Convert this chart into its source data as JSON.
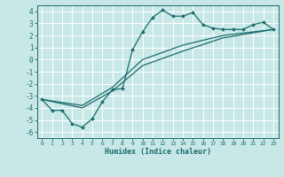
{
  "title": "",
  "xlabel": "Humidex (Indice chaleur)",
  "ylabel": "",
  "bg_color": "#c8e8e8",
  "grid_color": "#ffffff",
  "line_color": "#1a6b6b",
  "xlim": [
    -0.5,
    23.5
  ],
  "ylim": [
    -6.5,
    4.5
  ],
  "xticks": [
    0,
    1,
    2,
    3,
    4,
    5,
    6,
    7,
    8,
    9,
    10,
    11,
    12,
    13,
    14,
    15,
    16,
    17,
    18,
    19,
    20,
    21,
    22,
    23
  ],
  "yticks": [
    -6,
    -5,
    -4,
    -3,
    -2,
    -1,
    0,
    1,
    2,
    3,
    4
  ],
  "line1_x": [
    0,
    1,
    2,
    3,
    4,
    5,
    6,
    7,
    8,
    9,
    10,
    11,
    12,
    13,
    14,
    15,
    16,
    17,
    18,
    19,
    20,
    21,
    22,
    23
  ],
  "line1_y": [
    -3.3,
    -4.2,
    -4.2,
    -5.3,
    -5.6,
    -4.9,
    -3.5,
    -2.5,
    -2.4,
    0.8,
    2.3,
    3.5,
    4.1,
    3.6,
    3.6,
    3.9,
    2.9,
    2.6,
    2.5,
    2.5,
    2.5,
    2.9,
    3.1,
    2.5
  ],
  "line2_x": [
    0,
    23
  ],
  "line2_y": [
    -3.3,
    2.5
  ],
  "line3_x": [
    0,
    23
  ],
  "line3_y": [
    -3.3,
    2.5
  ],
  "line2_full_x": [
    0,
    4,
    7,
    10,
    14,
    18,
    23
  ],
  "line2_full_y": [
    -3.3,
    -3.8,
    -2.3,
    0.0,
    1.2,
    2.0,
    2.5
  ],
  "line3_full_x": [
    0,
    4,
    7,
    10,
    14,
    18,
    23
  ],
  "line3_full_y": [
    -3.3,
    -4.0,
    -2.6,
    -0.5,
    0.7,
    1.8,
    2.5
  ]
}
